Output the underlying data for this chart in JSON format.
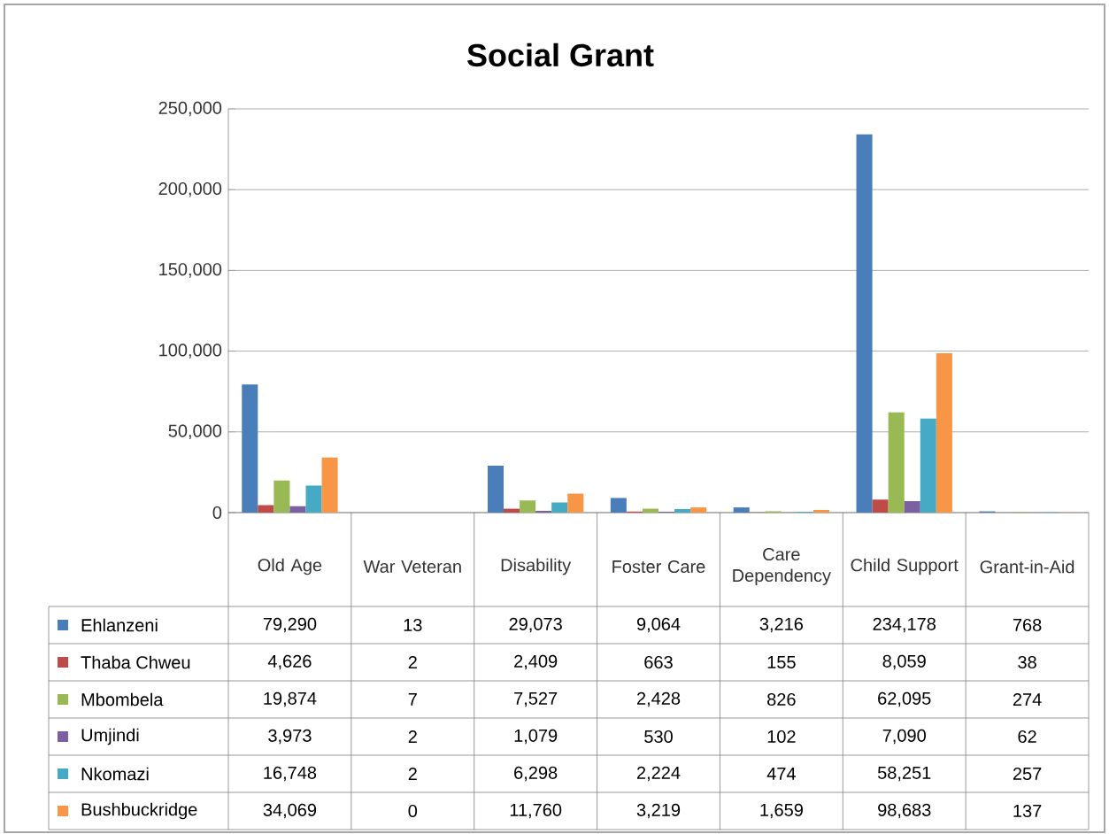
{
  "chart_data": {
    "type": "bar",
    "title": "Social Grant",
    "categories": [
      "Old Age",
      "War Veteran",
      "Disability",
      "Foster Care",
      "Care Dependency",
      "Child Support",
      "Grant-in-Aid"
    ],
    "series": [
      {
        "name": "Ehlanzeni",
        "color": "#4a7ebb",
        "values": [
          79290,
          13,
          29073,
          9064,
          3216,
          234178,
          768
        ],
        "value_labels": [
          "79,290",
          "13",
          "29,073",
          "9,064",
          "3,216",
          "234,178",
          "768"
        ]
      },
      {
        "name": "Thaba Chweu",
        "color": "#be4b48",
        "values": [
          4626,
          2,
          2409,
          663,
          155,
          8059,
          38
        ],
        "value_labels": [
          "4,626",
          "2",
          "2,409",
          "663",
          "155",
          "8,059",
          "38"
        ]
      },
      {
        "name": "Mbombela",
        "color": "#98b954",
        "values": [
          19874,
          7,
          7527,
          2428,
          826,
          62095,
          274
        ],
        "value_labels": [
          "19,874",
          "7",
          "7,527",
          "2,428",
          "826",
          "62,095",
          "274"
        ]
      },
      {
        "name": "Umjindi",
        "color": "#7d60a0",
        "values": [
          3973,
          2,
          1079,
          530,
          102,
          7090,
          62
        ],
        "value_labels": [
          "3,973",
          "2",
          "1,079",
          "530",
          "102",
          "7,090",
          "62"
        ]
      },
      {
        "name": "Nkomazi",
        "color": "#46aac5",
        "values": [
          16748,
          2,
          6298,
          2224,
          474,
          58251,
          257
        ],
        "value_labels": [
          "16,748",
          "2",
          "6,298",
          "2,224",
          "474",
          "58,251",
          "257"
        ]
      },
      {
        "name": "Bushbuckridge",
        "color": "#f79646",
        "values": [
          34069,
          0,
          11760,
          3219,
          1659,
          98683,
          137
        ],
        "value_labels": [
          "34,069",
          "0",
          "11,760",
          "3,219",
          "1,659",
          "98,683",
          "137"
        ]
      }
    ],
    "ylim": [
      0,
      250000
    ],
    "yticks": [
      0,
      {
        "value": 50000,
        "label": "50,000"
      },
      {
        "value": 100000,
        "label": "100,000"
      },
      {
        "value": 150000,
        "label": "150,000"
      },
      {
        "value": 200000,
        "label": "200,000"
      },
      {
        "value": 250000,
        "label": "250,000"
      }
    ],
    "grid": "y",
    "legend": "bottom left"
  }
}
